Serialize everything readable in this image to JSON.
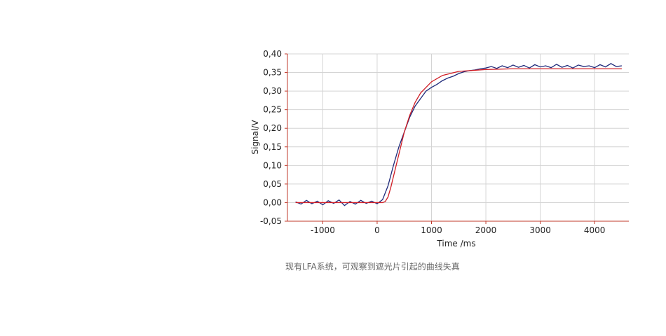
{
  "chart_data": {
    "type": "line",
    "xlabel": "Time /ms",
    "ylabel": "Signal/V",
    "caption": "现有LFA系统，可观察到遮光片引起的曲线失真",
    "xlim": [
      -1650,
      4630
    ],
    "ylim": [
      -0.05,
      0.4
    ],
    "xticks": [
      -1000,
      0,
      1000,
      2000,
      3000,
      4000
    ],
    "yticks": [
      {
        "value": -0.05,
        "label": "-0,05"
      },
      {
        "value": 0,
        "label": "0,00"
      },
      {
        "value": 0.05,
        "label": "0,05"
      },
      {
        "value": 0.1,
        "label": "0,10"
      },
      {
        "value": 0.15,
        "label": "0,15"
      },
      {
        "value": 0.2,
        "label": "0,20"
      },
      {
        "value": 0.25,
        "label": "0,25"
      },
      {
        "value": 0.3,
        "label": "0,30"
      },
      {
        "value": 0.35,
        "label": "0,35"
      },
      {
        "value": 0.4,
        "label": "0,40"
      }
    ],
    "grid": true,
    "series": [
      {
        "color": "#1f2a7a",
        "x": [
          -1500,
          -1400,
          -1300,
          -1200,
          -1100,
          -1000,
          -900,
          -800,
          -700,
          -600,
          -500,
          -400,
          -300,
          -200,
          -100,
          0,
          100,
          200,
          300,
          400,
          500,
          600,
          700,
          800,
          900,
          1000,
          1100,
          1200,
          1300,
          1400,
          1500,
          1600,
          1700,
          1800,
          1900,
          2000,
          2100,
          2200,
          2300,
          2400,
          2500,
          2600,
          2700,
          2800,
          2900,
          3000,
          3100,
          3200,
          3300,
          3400,
          3500,
          3600,
          3700,
          3800,
          3900,
          4000,
          4100,
          4200,
          4300,
          4400,
          4500
        ],
        "values": [
          0.002,
          -0.004,
          0.006,
          -0.003,
          0.004,
          -0.006,
          0.005,
          -0.002,
          0.007,
          -0.008,
          0.003,
          -0.004,
          0.006,
          -0.002,
          0.004,
          -0.003,
          0.008,
          0.045,
          0.1,
          0.15,
          0.19,
          0.23,
          0.26,
          0.28,
          0.3,
          0.31,
          0.318,
          0.328,
          0.335,
          0.34,
          0.347,
          0.352,
          0.355,
          0.357,
          0.36,
          0.362,
          0.366,
          0.361,
          0.368,
          0.363,
          0.37,
          0.364,
          0.369,
          0.362,
          0.371,
          0.365,
          0.368,
          0.363,
          0.372,
          0.364,
          0.369,
          0.362,
          0.37,
          0.366,
          0.368,
          0.363,
          0.371,
          0.365,
          0.374,
          0.366,
          0.368
        ]
      },
      {
        "color": "#d01c24",
        "x": [
          -1500,
          -1000,
          -500,
          0,
          100,
          150,
          200,
          250,
          300,
          400,
          500,
          600,
          700,
          800,
          1000,
          1200,
          1500,
          2000,
          2500,
          3000,
          4500
        ],
        "values": [
          0,
          0,
          0,
          0,
          0,
          0.003,
          0.015,
          0.04,
          0.07,
          0.13,
          0.19,
          0.235,
          0.27,
          0.295,
          0.325,
          0.342,
          0.353,
          0.358,
          0.36,
          0.36,
          0.36
        ]
      }
    ]
  }
}
